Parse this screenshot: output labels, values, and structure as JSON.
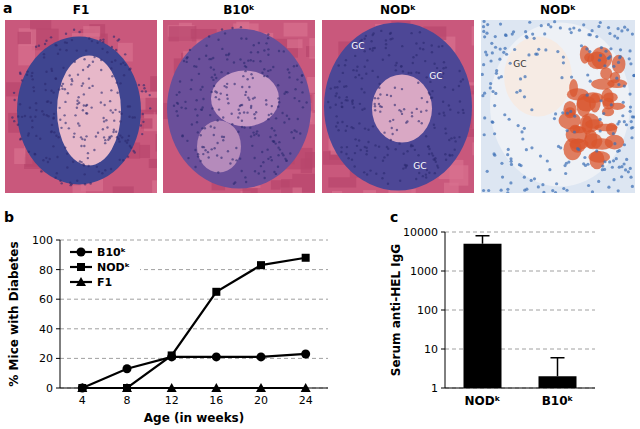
{
  "panel_a": {
    "label": "a",
    "images": [
      {
        "title": "F1"
      },
      {
        "title": "B10ᵏ"
      },
      {
        "title": "NODᵏ",
        "labels": [
          "GC",
          "GC",
          "GC"
        ]
      },
      {
        "title": "NODᵏ",
        "labels": [
          "GC"
        ]
      }
    ]
  },
  "chart_data": [
    {
      "type": "line",
      "annotations": [
        "b"
      ],
      "x": [
        4,
        8,
        12,
        16,
        20,
        24
      ],
      "xlim": [
        2,
        26
      ],
      "xticks": [
        4,
        8,
        12,
        16,
        20,
        24
      ],
      "ylim": [
        0,
        100
      ],
      "yticks": [
        0,
        20,
        40,
        60,
        80,
        100
      ],
      "x_label": "Age (in weeks)",
      "y_label": "% Mice with Diabetes",
      "grid": true,
      "legend": "top-left",
      "series": [
        {
          "name": "B10ᵏ",
          "color": "#000000",
          "marker": "circle",
          "values": [
            0,
            13,
            21,
            21,
            21,
            23
          ]
        },
        {
          "name": "NODᵏ",
          "color": "#000000",
          "marker": "square",
          "values": [
            0,
            0,
            22,
            65,
            83,
            88
          ]
        },
        {
          "name": "F1",
          "color": "#000000",
          "marker": "triangle",
          "values": [
            0,
            0,
            0,
            0,
            0,
            0
          ]
        }
      ]
    },
    {
      "type": "bar",
      "annotations": [
        "c"
      ],
      "categories": [
        "NODᵏ",
        "B10ᵏ"
      ],
      "values": [
        5000,
        2
      ],
      "errors": [
        3000,
        4
      ],
      "log": "y",
      "ylim": [
        1,
        10000
      ],
      "yticks": [
        1,
        10,
        100,
        1000,
        10000
      ],
      "y_label": "Serum anti-HEL IgG",
      "grid": true,
      "color": "#000000"
    }
  ]
}
